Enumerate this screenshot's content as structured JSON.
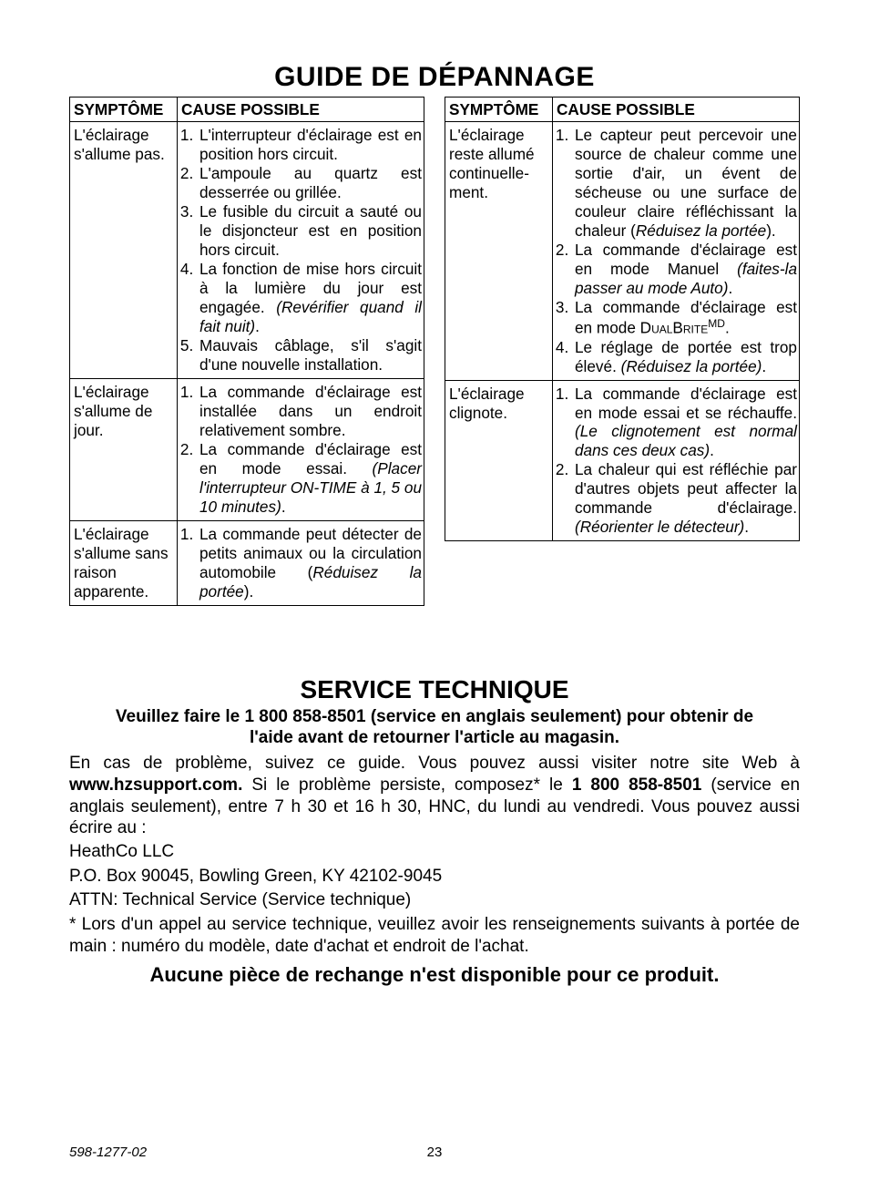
{
  "title": "GUIDE DE DÉPANNAGE",
  "table_headers": {
    "symptom": "SYMPTÔME",
    "cause": "CAUSE POSSIBLE"
  },
  "table_left": [
    {
      "symptom": "L'éclairage s'allume pas.",
      "causes_html": "<ol><li>L'interrupteur d'éclairage est en position hors circuit.</li><li>L'ampoule au quartz est desserrée ou grillée.</li><li>Le fusible du circuit a sauté ou le disjoncteur est en position hors circuit.</li><li>La fonction de mise hors circuit à la lumière du jour est engagée. <span class='italic'>(Revérifier quand il fait nuit)</span>.</li><li>Mauvais câblage, s'il s'agit d'une nouvelle installation.</li></ol>"
    },
    {
      "symptom": "L'éclairage s'allume de jour.",
      "causes_html": "<ol><li>La commande d'éclairage est installée dans un endroit relativement sombre.</li><li>La commande d'éclairage est en mode essai. <span class='italic'>(Placer l'interrupteur ON-TIME à 1, 5 ou 10 minutes)</span>.</li></ol>"
    },
    {
      "symptom": "L'éclairage s'allume sans raison apparente.",
      "causes_html": "<ol><li>La commande peut détecter de petits animaux ou la circulation automobile (<span class='italic'>Réduisez la portée</span>).</li></ol>"
    }
  ],
  "table_right": [
    {
      "symptom": "L'éclairage reste allumé continuelle­ment.",
      "causes_html": "<ol><li>Le capteur peut percevoir une source de chaleur comme une sortie d'air, un évent de sécheuse ou une surface de couleur claire réfléchissant la chaleur (<span class='italic'>Réduisez la portée</span>).</li><li>La commande d'éclairage est en mode Manuel <span class='italic'>(faites-la passer au mode Auto)</span>.</li><li>La commande d'éclairage est en mode <span class='smallcaps'>DualBrite</span><sup>MD</sup>.</li><li>Le réglage de portée est trop élevé. <span class='italic'>(Réduisez la portée)</span>.</li></ol>"
    },
    {
      "symptom": "L'éclairage clignote.",
      "causes_html": "<ol><li>La commande d'éclairage est en mode essai et se réchauffe. <span class='italic'>(Le clignotement est normal dans ces deux cas)</span>.</li><li>La chaleur qui est réfléchie par d'autres objets peut affecter la commande d'éclairage. <span class='italic'>(Réorienter le détecteur)</span>.</li></ol>"
    }
  ],
  "service": {
    "heading": "SERVICE TECHNIQUE",
    "bold_line1": "Veuillez faire le 1 800 858-8501 (service en anglais seulement) pour obtenir de",
    "bold_line2": "l'aide avant de retourner l'article au magasin.",
    "para_before_site": "En cas de problème, suivez ce guide. Vous pouvez aussi visiter notre site Web à ",
    "site": "www.hzsupport.com.",
    "para_mid": " Si le problème persiste, composez* le ",
    "phone": "1 800 858-8501",
    "para_after_phone": " (service en anglais seulement), entre 7 h 30 et 16 h 30, HNC, du lundi au vendredi. Vous pouvez aussi écrire au :",
    "addr1": "HeathCo LLC",
    "addr2": "P.O. Box 90045, Bowling Green, KY 42102-9045",
    "addr3": "ATTN: Technical Service (Service technique)",
    "note": "* Lors d'un appel au service technique, veuillez avoir les renseignements suivants à portée de main : numéro du modèle, date d'achat et endroit de l'achat.",
    "no_parts": "Aucune pièce de rechange n'est disponible pour ce produit."
  },
  "footer": {
    "docnum": "598-1277-02",
    "page": "23"
  },
  "colors": {
    "text": "#000000",
    "background": "#ffffff",
    "border": "#000000"
  }
}
